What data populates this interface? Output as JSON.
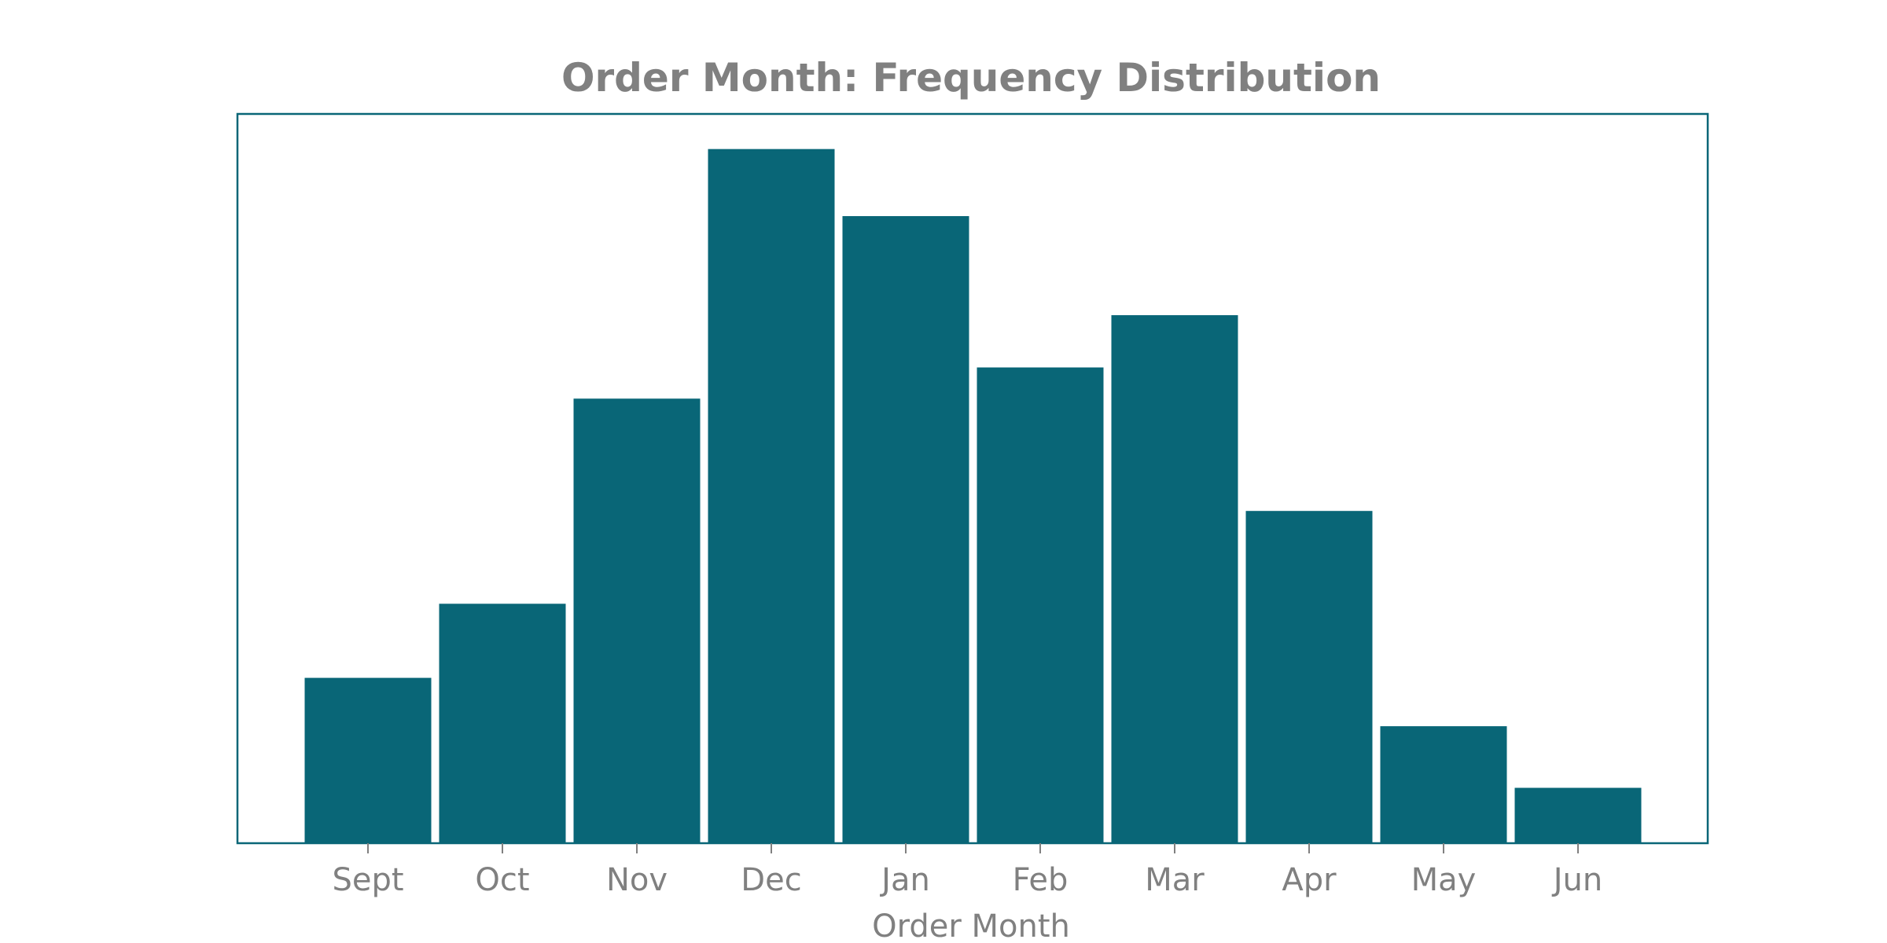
{
  "chart_data": {
    "type": "bar",
    "title": "Order Month: Frequency Distribution",
    "xlabel": "Order Month",
    "ylabel": "",
    "categories": [
      "Sept",
      "Oct",
      "Nov",
      "Dec",
      "Jan",
      "Feb",
      "Mar",
      "Apr",
      "May",
      "Jun"
    ],
    "values": [
      212,
      307,
      570,
      890,
      804,
      610,
      677,
      426,
      150,
      71
    ],
    "ylim": [
      0,
      935
    ],
    "grid": false,
    "y_axis_visible": false,
    "colors": {
      "bar": "#096677",
      "frame": "#096677",
      "text": "#808080"
    }
  }
}
